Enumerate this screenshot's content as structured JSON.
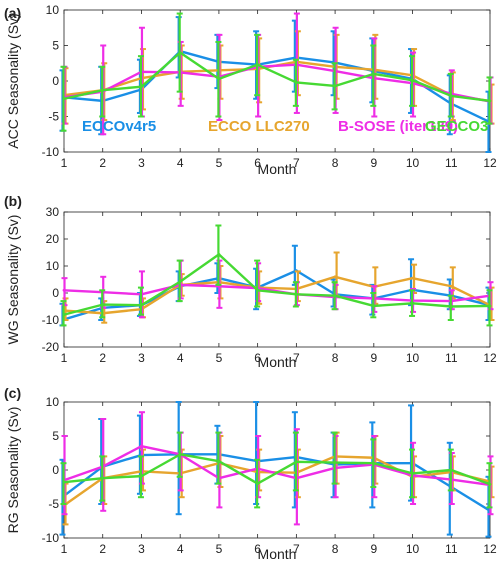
{
  "colors": {
    "ECCOv4r5": "#1a8fe6",
    "ECCO LLC270": "#e6a52e",
    "B-SOSE (iter139)": "#ee2de6",
    "GECCO3": "#46d933"
  },
  "legend": [
    "ECCOv4r5",
    "ECCO LLC270",
    "B-SOSE (iter139)",
    "GECCO3"
  ],
  "chart_data": [
    {
      "type": "line",
      "panel_label": "(a)",
      "xlabel": "Month",
      "ylabel": "ACC Seasonality (Sv)",
      "x": [
        1,
        2,
        3,
        4,
        5,
        6,
        7,
        8,
        9,
        10,
        11,
        12
      ],
      "xlim": [
        1,
        12
      ],
      "ylim": [
        -10,
        10
      ],
      "yticks": [
        -10,
        -5,
        0,
        5,
        10
      ],
      "grid": false,
      "legend_position": "bottom",
      "series": [
        {
          "name": "ECCOv4r5",
          "values": [
            -2.3,
            -2.8,
            -1.2,
            4.2,
            2.7,
            2.3,
            3.3,
            2.6,
            1.4,
            0.3,
            -3.2,
            -5.8
          ],
          "err_low": [
            -7,
            -7.5,
            -4.5,
            0.5,
            -1,
            -2.5,
            -1.5,
            -2,
            -3,
            -4.5,
            -7.5,
            -10.5
          ],
          "err_high": [
            1.5,
            2,
            3,
            9,
            6.5,
            7,
            8.5,
            7,
            6,
            4.5,
            0.8,
            -1.5
          ]
        },
        {
          "name": "ECCO LLC270",
          "values": [
            -2.0,
            -1.3,
            0.4,
            1.3,
            1.5,
            1.7,
            2.7,
            2.0,
            1.6,
            0.8,
            -2.0,
            -2.8
          ],
          "err_low": [
            -6,
            -5.5,
            -4,
            -2.5,
            -2.5,
            -3,
            -2,
            -2.5,
            -2.5,
            -3.5,
            -5.5,
            -6
          ],
          "err_high": [
            1.8,
            2.5,
            4.5,
            5,
            5,
            6,
            7,
            6.5,
            6.5,
            4.5,
            1.2,
            -0.5
          ]
        },
        {
          "name": "B-SOSE (iter139)",
          "values": [
            -2.3,
            -1.5,
            1.3,
            1.2,
            0.6,
            2.0,
            2.3,
            1.4,
            0.4,
            -0.3,
            -1.8,
            -2.9
          ],
          "err_low": [
            -6,
            -7.5,
            -5,
            -3.5,
            -5.5,
            -5,
            -4.5,
            -4.5,
            -5,
            -5,
            -5,
            -6
          ],
          "err_high": [
            2,
            5,
            7.5,
            5.5,
            6.5,
            6.5,
            9.5,
            7.5,
            6,
            4,
            1.5,
            0.5
          ]
        },
        {
          "name": "GECCO3",
          "values": [
            -2.5,
            -1.3,
            -0.8,
            4.0,
            0.3,
            2.3,
            -0.2,
            -0.7,
            1.0,
            0.1,
            -2.1,
            -2.8
          ],
          "err_low": [
            -7,
            -5,
            -5,
            -1.5,
            -5,
            -2,
            -3.5,
            -4,
            -3.5,
            -3.5,
            -5,
            -6
          ],
          "err_high": [
            2,
            2,
            3.5,
            9.5,
            5.5,
            6.5,
            3,
            2.5,
            5,
            3.5,
            1,
            0.5
          ]
        }
      ]
    },
    {
      "type": "line",
      "panel_label": "(b)",
      "xlabel": "Month",
      "ylabel": "WG Seasonality (Sv)",
      "x": [
        1,
        2,
        3,
        4,
        5,
        6,
        7,
        8,
        9,
        10,
        11,
        12
      ],
      "xlim": [
        1,
        12
      ],
      "ylim": [
        -20,
        30
      ],
      "yticks": [
        -20,
        -10,
        0,
        10,
        20,
        30
      ],
      "grid": false,
      "series": [
        {
          "name": "ECCOv4r5",
          "values": [
            -9.8,
            -5.5,
            -4.5,
            2.5,
            5.5,
            2.0,
            8.3,
            -0.5,
            -2.0,
            1.2,
            -1.0,
            -4.5
          ],
          "err_low": [
            -12,
            -10,
            -8.5,
            -3,
            0,
            -6,
            3,
            -5,
            -8,
            -4.5,
            -6,
            -10
          ],
          "err_high": [
            -4,
            -2,
            0,
            8,
            11,
            9,
            17.5,
            5,
            3,
            12.5,
            5,
            2
          ]
        },
        {
          "name": "ECCO LLC270",
          "values": [
            -6.5,
            -7.5,
            -6.0,
            3.0,
            4.0,
            2.0,
            1.5,
            6.0,
            2.3,
            5.5,
            2.5,
            -4.5
          ],
          "err_low": [
            -10,
            -11,
            -9,
            -1,
            -2,
            -4,
            -3,
            -1,
            -4,
            0,
            -2,
            -10
          ],
          "err_high": [
            -2,
            -3,
            -2,
            7,
            10,
            8,
            8,
            15,
            9.5,
            10.5,
            9.5,
            2
          ]
        },
        {
          "name": "B-SOSE (iter139)",
          "values": [
            1.0,
            0.3,
            -0.5,
            3.0,
            2.5,
            1.8,
            -0.5,
            -1.5,
            -2.0,
            -2.8,
            -3.0,
            -1.0
          ],
          "err_low": [
            -4.5,
            -5.5,
            -9,
            -2,
            -5.5,
            -3,
            -4.5,
            -6,
            -7,
            -7,
            -6,
            -6
          ],
          "err_high": [
            5.5,
            6,
            8,
            12,
            12,
            11,
            4,
            3,
            2.5,
            1.5,
            1,
            4
          ]
        },
        {
          "name": "GECCO3",
          "values": [
            -8.0,
            -4.3,
            -4.5,
            4.2,
            14.3,
            1.0,
            -0.5,
            -1.0,
            -4.8,
            -3.8,
            -5.0,
            -4.8
          ],
          "err_low": [
            -12,
            -9,
            -8,
            -3,
            3,
            -5,
            -5,
            -6,
            -9,
            -8.5,
            -10,
            -12
          ],
          "err_high": [
            -3,
            1,
            2,
            12,
            25,
            12,
            4,
            4,
            0,
            1,
            -1,
            1
          ]
        }
      ]
    },
    {
      "type": "line",
      "panel_label": "(c)",
      "xlabel": "Month",
      "ylabel": "RG Seasonality (Sv)",
      "x": [
        1,
        2,
        3,
        4,
        5,
        6,
        7,
        8,
        9,
        10,
        11,
        12
      ],
      "xlim": [
        1,
        12
      ],
      "ylim": [
        -10,
        10
      ],
      "yticks": [
        -10,
        -5,
        0,
        5,
        10
      ],
      "grid": false,
      "series": [
        {
          "name": "ECCOv4r5",
          "values": [
            -3.8,
            0.5,
            2.2,
            2.3,
            2.3,
            1.3,
            1.9,
            0.8,
            1.0,
            1.0,
            -2.5,
            -6.0
          ],
          "err_low": [
            -9.5,
            -5,
            -3.5,
            -6.5,
            -2,
            -5,
            -5.5,
            -4,
            -5.5,
            -4.5,
            -9.5,
            -9.8
          ],
          "err_high": [
            1.5,
            7.5,
            8,
            11.5,
            6.5,
            10,
            8.5,
            5.5,
            7,
            9.5,
            4,
            -1
          ]
        },
        {
          "name": "ECCO LLC270",
          "values": [
            -5.2,
            -1.2,
            -0.2,
            -0.5,
            1.0,
            -0.3,
            -0.4,
            2.0,
            1.8,
            -1.0,
            -0.3,
            -1.7
          ],
          "err_low": [
            -8,
            -5,
            -3,
            -4,
            -2.5,
            -3,
            -4,
            -2,
            -2,
            -4,
            -3,
            -4
          ],
          "err_high": [
            -2,
            2,
            3,
            3,
            5,
            3,
            3,
            5.5,
            5,
            2,
            2,
            0.5
          ]
        },
        {
          "name": "B-SOSE (iter139)",
          "values": [
            -1.5,
            0.5,
            3.5,
            2.3,
            -1.2,
            0.2,
            -1.2,
            0.3,
            0.8,
            -0.8,
            -1.4,
            -2.2
          ],
          "err_low": [
            -6.5,
            -6,
            -2,
            -3,
            -5.5,
            -4,
            -8,
            -4,
            -4,
            -5,
            -5,
            -6.5
          ],
          "err_high": [
            5,
            7.5,
            8.5,
            5.5,
            5.5,
            5,
            6,
            5,
            5,
            4,
            2.5,
            2
          ]
        },
        {
          "name": "GECCO3",
          "values": [
            -1.8,
            -1.2,
            -0.9,
            2.3,
            1.3,
            -2.0,
            1.2,
            1.1,
            1.0,
            -0.5,
            0.0,
            -2.1
          ],
          "err_low": [
            -5,
            -4.5,
            -4,
            -1,
            -2,
            -5.5,
            -3,
            -2,
            -2.5,
            -4,
            -3,
            -5.5
          ],
          "err_high": [
            1,
            2,
            2,
            5.5,
            5.5,
            1.5,
            5.5,
            5.5,
            4.5,
            3,
            3,
            1
          ]
        }
      ]
    }
  ]
}
